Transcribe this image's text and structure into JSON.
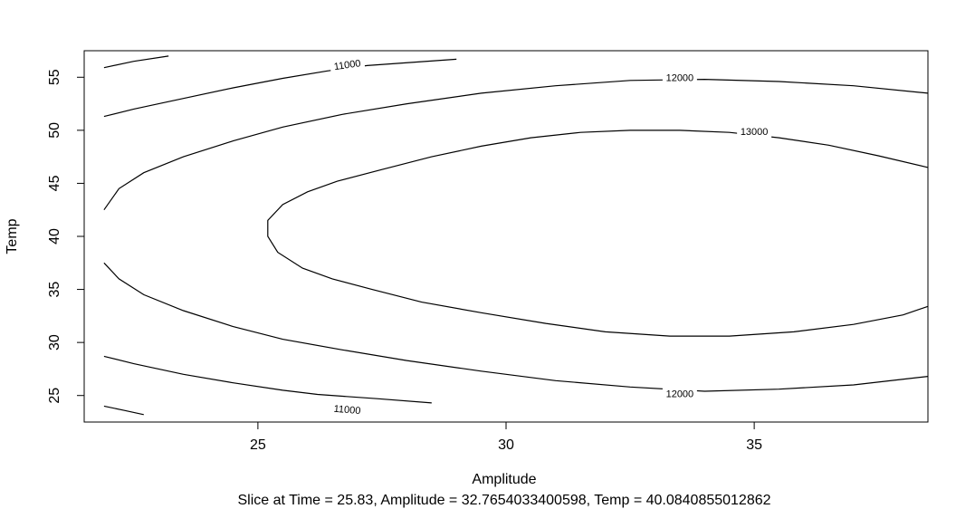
{
  "chart_data": {
    "type": "contour",
    "xlabel": "Amplitude",
    "ylabel": "Temp",
    "subtitle": "Slice at Time = 25.83, Amplitude = 32.7654033400598, Temp = 40.0840855012862",
    "xlim": [
      21.5,
      38.5
    ],
    "ylim": [
      22.5,
      57.5
    ],
    "x_ticks": [
      25,
      30,
      35
    ],
    "y_ticks": [
      25,
      30,
      35,
      40,
      45,
      50,
      55
    ],
    "x_tick_labels": [
      "25",
      "30",
      "35"
    ],
    "y_tick_labels": [
      "25",
      "30",
      "35",
      "40",
      "45",
      "50",
      "55"
    ],
    "grid": false,
    "contours": [
      {
        "level": "11000",
        "label": "11000",
        "label_at": [
          26.8,
          56.2
        ],
        "label_angle": -8,
        "points": [
          [
            21.9,
            55.9
          ],
          [
            22.5,
            56.5
          ],
          [
            23.2,
            57.0
          ]
        ]
      },
      {
        "level": "11000",
        "label": "11000",
        "label_at": [
          26.8,
          56.2
        ],
        "label_angle": -8,
        "points": [
          [
            21.9,
            51.3
          ],
          [
            22.5,
            52.0
          ],
          [
            23.5,
            53.0
          ],
          [
            24.5,
            54.0
          ],
          [
            25.5,
            54.9
          ],
          [
            26.4,
            55.6
          ],
          [
            27.2,
            56.1
          ],
          [
            29.0,
            56.7
          ]
        ]
      },
      {
        "level": "11000",
        "label": "11000",
        "label_at": [
          26.8,
          23.7
        ],
        "label_angle": 5,
        "points": [
          [
            21.9,
            24.0
          ],
          [
            22.3,
            23.6
          ],
          [
            22.7,
            23.2
          ]
        ]
      },
      {
        "level": "11000",
        "label": "11000",
        "label_at": [
          26.8,
          23.7
        ],
        "label_angle": 5,
        "points": [
          [
            21.9,
            28.7
          ],
          [
            22.5,
            28.0
          ],
          [
            23.5,
            27.0
          ],
          [
            24.5,
            26.2
          ],
          [
            25.5,
            25.5
          ],
          [
            26.2,
            25.1
          ],
          [
            27.4,
            24.7
          ],
          [
            28.5,
            24.3
          ]
        ]
      },
      {
        "level": "12000",
        "label": "12000",
        "label_at": [
          33.5,
          55.0
        ],
        "label_angle": 0,
        "points": [
          [
            21.9,
            42.5
          ],
          [
            22.2,
            44.5
          ],
          [
            22.7,
            46.0
          ],
          [
            23.5,
            47.5
          ],
          [
            24.5,
            49.0
          ],
          [
            25.5,
            50.3
          ],
          [
            26.7,
            51.5
          ],
          [
            28.0,
            52.5
          ],
          [
            29.5,
            53.5
          ],
          [
            31.0,
            54.2
          ],
          [
            32.5,
            54.7
          ],
          [
            34.0,
            54.8
          ],
          [
            35.5,
            54.6
          ],
          [
            37.0,
            54.2
          ],
          [
            38.5,
            53.5
          ]
        ]
      },
      {
        "level": "12000",
        "label": "12000",
        "label_at": [
          33.5,
          25.2
        ],
        "label_angle": 0,
        "points": [
          [
            21.9,
            37.5
          ],
          [
            22.2,
            36.0
          ],
          [
            22.7,
            34.5
          ],
          [
            23.5,
            33.0
          ],
          [
            24.5,
            31.5
          ],
          [
            25.5,
            30.3
          ],
          [
            26.7,
            29.3
          ],
          [
            28.0,
            28.3
          ],
          [
            29.5,
            27.3
          ],
          [
            31.0,
            26.4
          ],
          [
            32.5,
            25.8
          ],
          [
            34.0,
            25.4
          ],
          [
            35.5,
            25.6
          ],
          [
            37.0,
            26.0
          ],
          [
            38.5,
            26.8
          ]
        ]
      },
      {
        "level": "13000",
        "label": "13000",
        "label_at": [
          35.0,
          49.9
        ],
        "label_angle": 0,
        "points": [
          [
            38.5,
            46.5
          ],
          [
            37.5,
            47.6
          ],
          [
            36.5,
            48.6
          ],
          [
            35.5,
            49.3
          ],
          [
            34.5,
            49.8
          ],
          [
            33.5,
            50.0
          ],
          [
            32.5,
            50.0
          ],
          [
            31.5,
            49.8
          ],
          [
            30.5,
            49.3
          ],
          [
            29.5,
            48.5
          ],
          [
            28.5,
            47.5
          ],
          [
            27.5,
            46.3
          ],
          [
            26.6,
            45.2
          ],
          [
            26.0,
            44.2
          ],
          [
            25.5,
            43.0
          ],
          [
            25.2,
            41.5
          ],
          [
            25.2,
            40.0
          ],
          [
            25.4,
            38.5
          ],
          [
            25.9,
            37.0
          ],
          [
            26.5,
            36.0
          ],
          [
            27.3,
            35.0
          ],
          [
            28.3,
            33.8
          ],
          [
            29.5,
            32.8
          ],
          [
            30.8,
            31.8
          ],
          [
            32.0,
            31.0
          ],
          [
            33.3,
            30.6
          ],
          [
            34.5,
            30.6
          ],
          [
            35.8,
            31.0
          ],
          [
            37.0,
            31.7
          ],
          [
            38.0,
            32.6
          ],
          [
            38.5,
            33.4
          ]
        ]
      }
    ]
  }
}
